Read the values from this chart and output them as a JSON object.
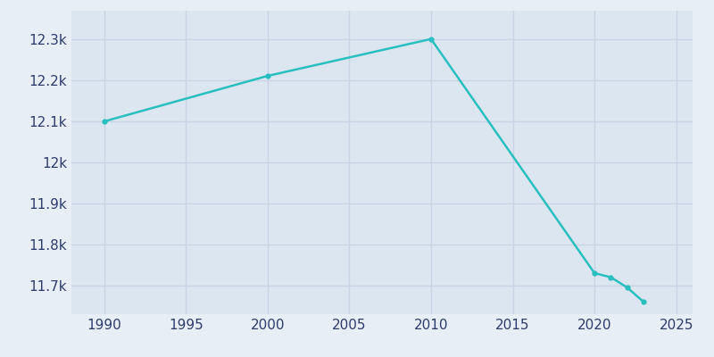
{
  "years": [
    1990,
    2000,
    2010,
    2020,
    2021,
    2022,
    2023
  ],
  "population": [
    12100,
    12211,
    12301,
    11730,
    11720,
    11695,
    11660
  ],
  "line_color": "#2abfbf",
  "marker": "o",
  "marker_size": 3.5,
  "plot_bg_color": "#dce6f1",
  "fig_bg_color": "#e8eef5",
  "grid_color": "#c8d4e3",
  "xlim": [
    1988,
    2026
  ],
  "ylim": [
    11630,
    12370
  ],
  "xticks": [
    1990,
    1995,
    2000,
    2005,
    2010,
    2015,
    2020,
    2025
  ],
  "ytick_values": [
    11700,
    11800,
    11900,
    12000,
    12100,
    12200,
    12300
  ],
  "ytick_labels": [
    "11.7k",
    "11.8k",
    "11.9k",
    "12k",
    "12.1k",
    "12.2k",
    "12.3k"
  ],
  "tick_label_color": "#2d3c6e",
  "tick_fontsize": 11,
  "linewidth": 1.8
}
